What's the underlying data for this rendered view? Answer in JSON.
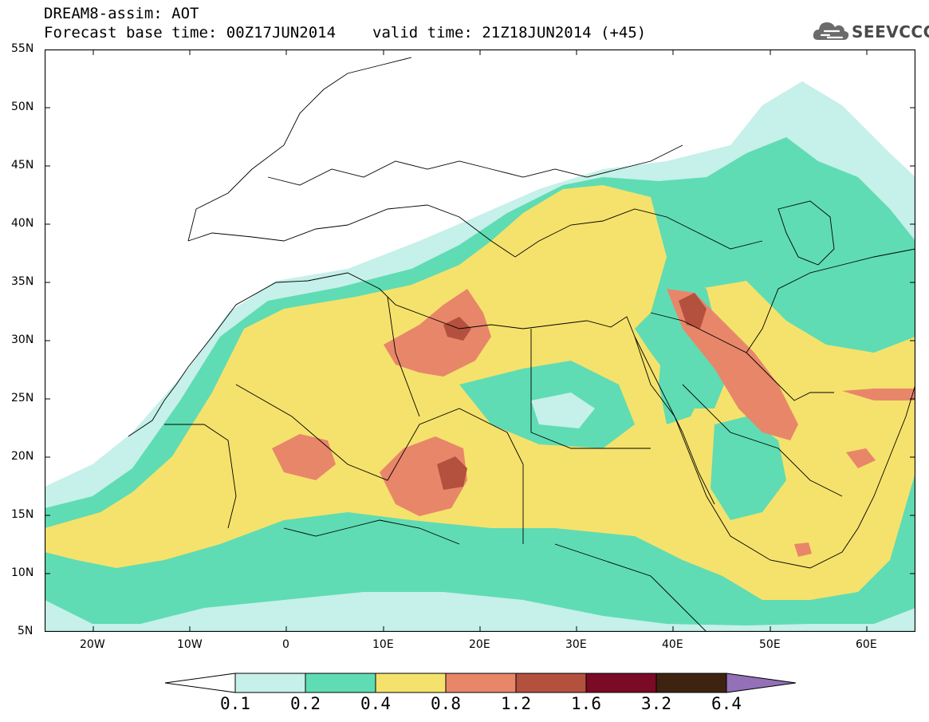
{
  "header": {
    "model_line": "DREAM8-assim: AOT",
    "base_time": "Forecast base time: 00Z17JUN2014",
    "valid_time": "valid time: 21Z18JUN2014 (+45)"
  },
  "logo": {
    "name": "cloud-logo-icon",
    "text": "SEEVCCC"
  },
  "map": {
    "lon_range": [
      -25,
      65
    ],
    "lat_range": [
      5,
      55
    ],
    "lat_ticks": [
      "55N",
      "50N",
      "45N",
      "40N",
      "35N",
      "30N",
      "25N",
      "20N",
      "15N",
      "10N",
      "5N"
    ],
    "lon_ticks": [
      "20W",
      "10W",
      "0",
      "10E",
      "20E",
      "30E",
      "40E",
      "50E",
      "60E"
    ],
    "field": "AOT",
    "colors": {
      "c01": "#c6f0ea",
      "c02": "#5fdcb3",
      "c04": "#f5e26c",
      "c08": "#e8866a",
      "c12": "#b4503e",
      "c16": "#7a0a25",
      "c32": "#3e2310",
      "c64": "#9370b8"
    }
  },
  "legend": {
    "labels": [
      "0.1",
      "0.2",
      "0.4",
      "0.8",
      "1.2",
      "1.6",
      "3.2",
      "6.4"
    ]
  }
}
